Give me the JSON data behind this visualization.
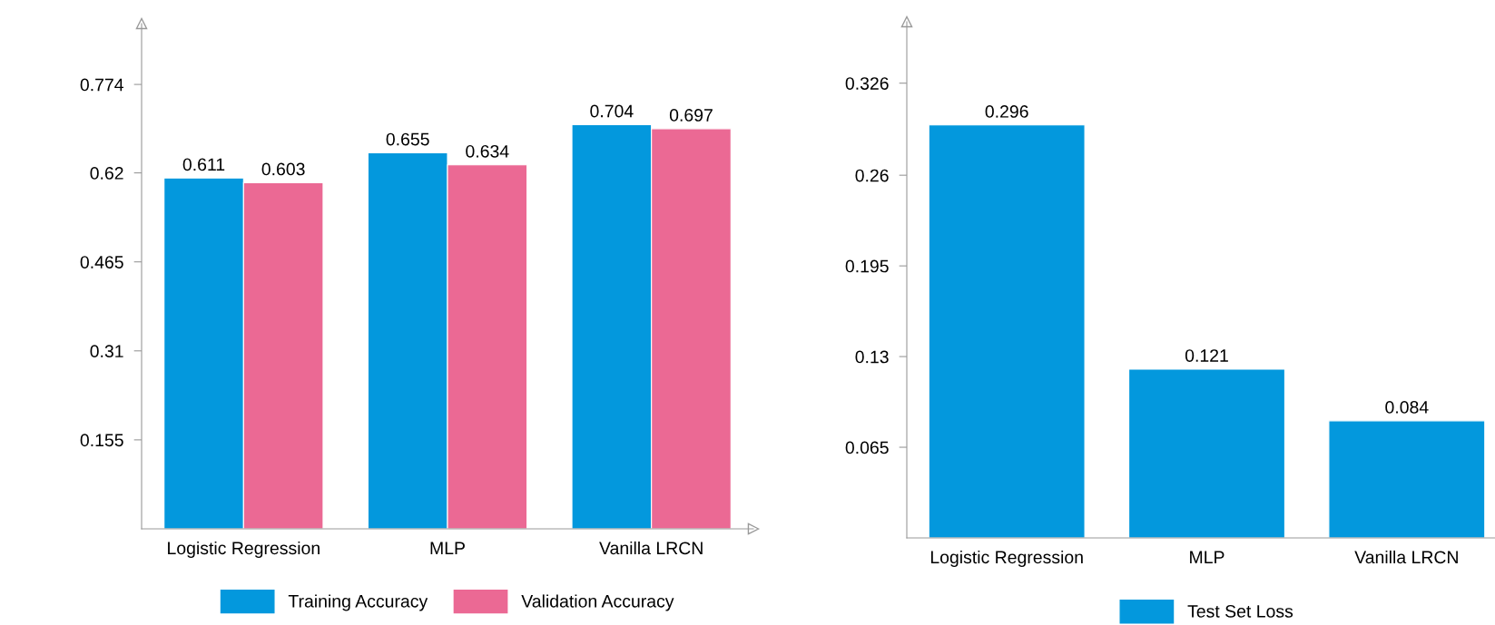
{
  "chart_data": [
    {
      "type": "bar",
      "categories": [
        "Logistic Regression",
        "MLP",
        "Vanilla LRCN"
      ],
      "series": [
        {
          "name": "Training Accuracy",
          "color": "#0398dd",
          "values": [
            0.611,
            0.655,
            0.704
          ]
        },
        {
          "name": "Validation Accuracy",
          "color": "#eb6994",
          "values": [
            0.603,
            0.634,
            0.697
          ]
        }
      ],
      "ylim": [
        0,
        0.88
      ],
      "yticks": [
        0.155,
        0.31,
        0.465,
        0.62,
        0.774
      ],
      "data_labels": true,
      "legend": "bottom",
      "grid": false
    },
    {
      "type": "bar",
      "categories": [
        "Logistic Regression",
        "MLP",
        "Vanilla LRCN"
      ],
      "series": [
        {
          "name": "Test Set Loss",
          "color": "#0398dd",
          "values": [
            0.296,
            0.121,
            0.084
          ]
        }
      ],
      "ylim": [
        0,
        0.37
      ],
      "yticks": [
        0.065,
        0.13,
        0.195,
        0.26,
        0.326
      ],
      "data_labels": true,
      "legend": "bottom",
      "grid": false
    }
  ]
}
